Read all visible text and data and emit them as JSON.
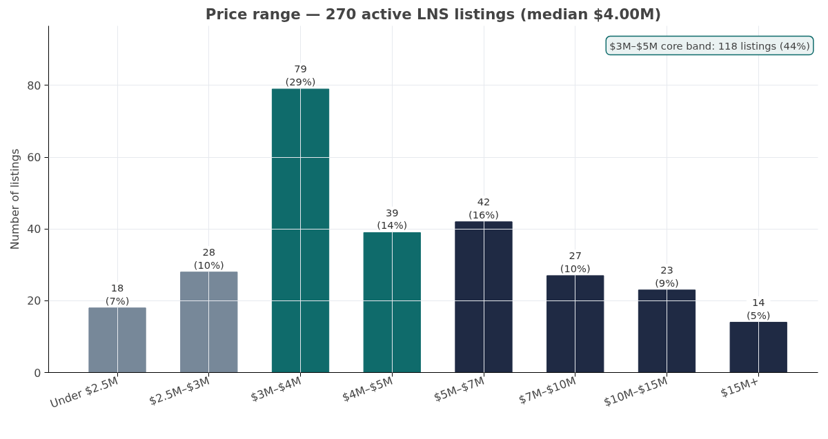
{
  "chart_data": {
    "type": "bar",
    "title": "Price range — 270 active LNS listings (median $4.00M)",
    "ylabel": "Number of listings",
    "categories": [
      "Under $2.5M",
      "$2.5M–$3M",
      "$3M–$4M",
      "$4M–$5M",
      "$5M–$7M",
      "$7M–$10M",
      "$10M–$15M",
      "$15M+"
    ],
    "values": [
      18,
      28,
      79,
      39,
      42,
      27,
      23,
      14
    ],
    "colors": [
      "#778899",
      "#778899",
      "#0f6b6b",
      "#0f6b6b",
      "#1f2a44",
      "#1f2a44",
      "#1f2a44",
      "#1f2a44"
    ],
    "value_labels": [
      "18\n(7%)",
      "28\n(10%)",
      "79\n(29%)",
      "39\n(14%)",
      "42\n(16%)",
      "27\n(10%)",
      "23\n(9%)",
      "14\n(5%)"
    ],
    "annotations": [
      "$3M–$5M core band: 118 listings (44%)"
    ],
    "ylim": [
      0,
      96.6
    ],
    "yticks": [
      0,
      20,
      40,
      60,
      80
    ],
    "grid": true
  }
}
